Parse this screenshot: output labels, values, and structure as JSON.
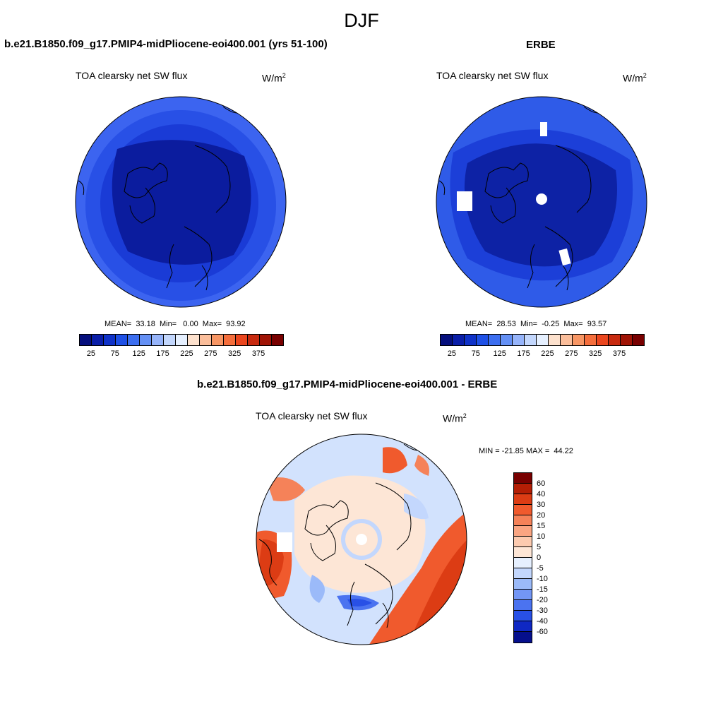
{
  "season": "DJF",
  "panel_left": {
    "header": "b.e21.B1850.f09_g17.PMIP4-midPliocene-eoi400.001 (yrs 51-100)",
    "variable": "TOA clearsky net SW flux",
    "units": "W/m",
    "units_exp": "2",
    "stats": "MEAN=  33.18  Min=   0.00  Max=  93.92"
  },
  "panel_right": {
    "header": "ERBE",
    "variable": "TOA clearsky net SW flux",
    "units": "W/m",
    "units_exp": "2",
    "stats": "MEAN=  28.53  Min=  -0.25  Max=  93.57"
  },
  "panel_diff": {
    "header": "b.e21.B1850.f09_g17.PMIP4-midPliocene-eoi400.001 - ERBE",
    "variable": "TOA clearsky net SW flux",
    "units": "W/m",
    "units_exp": "2",
    "minmax": "MIN = -21.85 MAX =  44.22"
  },
  "colorbar_abs": {
    "tick_labels": [
      "25",
      "75",
      "125",
      "175",
      "225",
      "275",
      "325",
      "375"
    ],
    "colors": [
      "#050f7d",
      "#0a1ea8",
      "#0f32c8",
      "#1e50e6",
      "#3c6ef0",
      "#6490f5",
      "#96b4fa",
      "#c3d7fd",
      "#e6f0ff",
      "#fde1cd",
      "#fbbe9b",
      "#f89664",
      "#f56e3c",
      "#eb461e",
      "#c82a0f",
      "#a01405",
      "#780000"
    ]
  },
  "colorbar_diff": {
    "labels": [
      "60",
      "40",
      "30",
      "20",
      "15",
      "10",
      "5",
      "0",
      "-5",
      "-10",
      "-15",
      "-20",
      "-30",
      "-40",
      "-60"
    ],
    "colors": [
      "#780000",
      "#b41e05",
      "#dc3c14",
      "#f05a2d",
      "#f58259",
      "#faa582",
      "#fccaaf",
      "#fde6d6",
      "#e6f0ff",
      "#c3d7fd",
      "#9bbaf9",
      "#7396f5",
      "#4b73f0",
      "#2850e6",
      "#0f28c3",
      "#050f8c"
    ]
  },
  "chart_data": [
    {
      "type": "heatmap",
      "title": "TOA clearsky net SW flux",
      "subtitle": "b.e21.B1850.f09_g17.PMIP4-midPliocene-eoi400.001 (yrs 51-100)",
      "projection": "north-polar stereographic",
      "mean": 33.18,
      "min": 0.0,
      "max": 93.92,
      "contour_levels": [
        25,
        50,
        75,
        100,
        125,
        150,
        175,
        200,
        225,
        250,
        275,
        300,
        325,
        350,
        375,
        400
      ]
    },
    {
      "type": "heatmap",
      "title": "TOA clearsky net SW flux",
      "subtitle": "ERBE",
      "projection": "north-polar stereographic",
      "mean": 28.53,
      "min": -0.25,
      "max": 93.57,
      "contour_levels": [
        25,
        50,
        75,
        100,
        125,
        150,
        175,
        200,
        225,
        250,
        275,
        300,
        325,
        350,
        375,
        400
      ]
    },
    {
      "type": "heatmap",
      "title": "TOA clearsky net SW flux",
      "subtitle": "b.e21.B1850.f09_g17.PMIP4-midPliocene-eoi400.001 - ERBE",
      "projection": "north-polar stereographic",
      "min": -21.85,
      "max": 44.22,
      "contour_levels": [
        -60,
        -40,
        -30,
        -20,
        -15,
        -10,
        -5,
        0,
        5,
        10,
        15,
        20,
        30,
        40,
        60
      ]
    }
  ]
}
